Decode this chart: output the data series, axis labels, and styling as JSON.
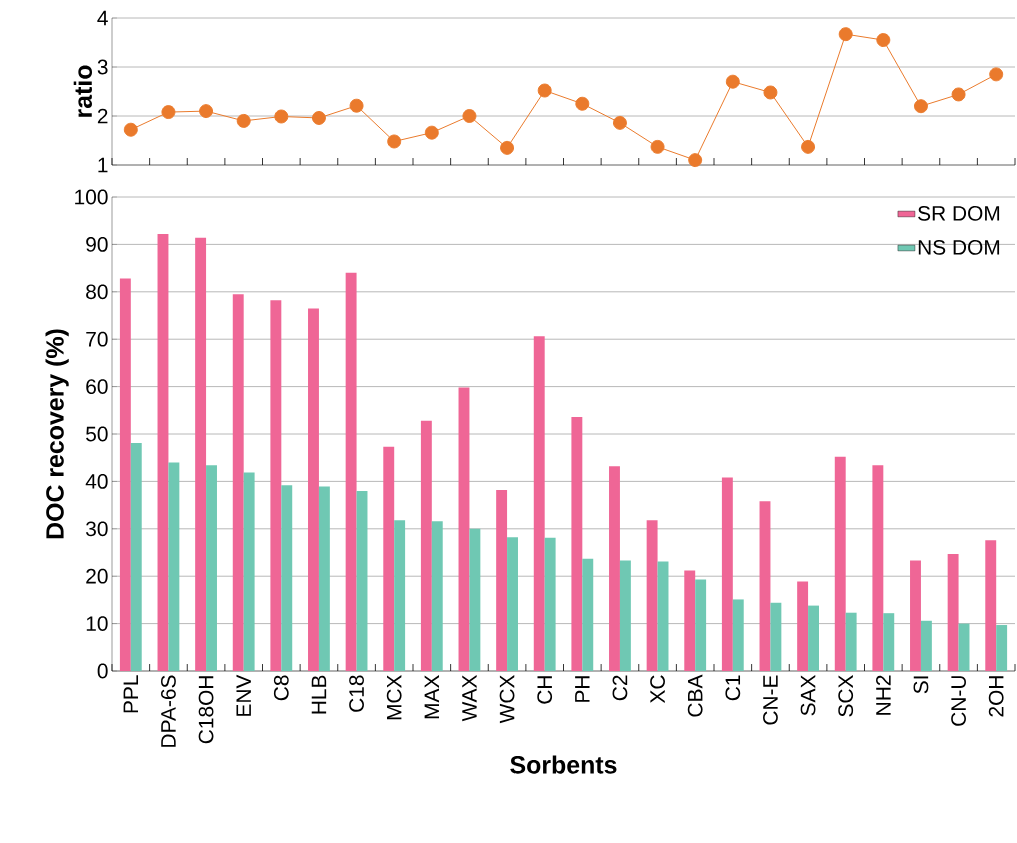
{
  "chart_data": [
    {
      "type": "line",
      "ylabel": "ratio",
      "categories": [
        null,
        null,
        null,
        null,
        null,
        null,
        null,
        null,
        null,
        null,
        null,
        null,
        null,
        null,
        null,
        null,
        null,
        null,
        null,
        null,
        null,
        null,
        null,
        null
      ],
      "values": [
        1.72,
        2.08,
        2.1,
        1.9,
        1.99,
        1.96,
        2.21,
        1.48,
        1.66,
        2.0,
        1.35,
        2.52,
        2.25,
        1.86,
        1.37,
        1.1,
        2.7,
        2.48,
        1.37,
        3.67,
        3.55,
        2.2,
        2.44,
        2.85
      ],
      "color": "#ea7a2c",
      "marker": "circle",
      "line_style": "solid",
      "ylim": [
        1,
        4
      ],
      "yticks": [
        1,
        2,
        3,
        4
      ],
      "grid": "y",
      "tick_labels": "y"
    },
    {
      "type": "bar",
      "xlabel": "Sorbents",
      "ylabel": "DOC recovery (%)",
      "categories": [
        "PPL",
        "DPA-6S",
        "C18OH",
        "ENV",
        "C8",
        "HLB",
        "C18",
        "MCX",
        "MAX",
        "WAX",
        "WCX",
        "CH",
        "PH",
        "C2",
        "XC",
        "CBA",
        "C1",
        "CN-E",
        "SAX",
        "SCX",
        "NH2",
        "SI",
        "CN-U",
        "2OH"
      ],
      "series": [
        {
          "name": "SR DOM",
          "color": "#ef6696",
          "values": [
            82.8,
            92.2,
            91.4,
            79.5,
            78.2,
            76.5,
            84.0,
            47.3,
            52.8,
            59.8,
            38.2,
            70.6,
            53.6,
            43.2,
            31.8,
            21.2,
            40.8,
            35.8,
            18.9,
            45.2,
            43.4,
            23.3,
            24.7,
            27.6
          ]
        },
        {
          "name": "NS DOM",
          "color": "#6fc8b3",
          "values": [
            48.1,
            44.0,
            43.4,
            41.9,
            39.2,
            38.9,
            38.0,
            31.8,
            31.6,
            30.0,
            28.2,
            28.1,
            23.7,
            23.3,
            23.1,
            19.3,
            15.1,
            14.4,
            13.8,
            12.3,
            12.2,
            10.6,
            10.0,
            9.7
          ]
        }
      ],
      "ylim": [
        0,
        100
      ],
      "yticks": [
        0,
        10,
        20,
        30,
        40,
        50,
        60,
        70,
        80,
        90,
        100
      ],
      "grid": "y",
      "legend": "top right"
    }
  ]
}
